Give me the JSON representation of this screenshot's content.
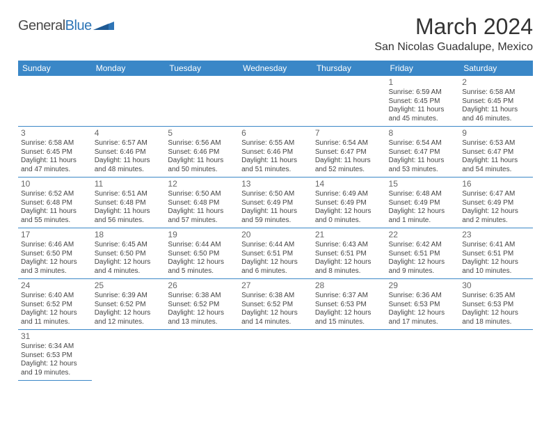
{
  "brand": {
    "name_part1": "General",
    "name_part2": "Blue"
  },
  "header": {
    "month_title": "March 2024",
    "location": "San Nicolas Guadalupe, Mexico"
  },
  "colors": {
    "header_bg": "#3a87c7",
    "header_text": "#ffffff",
    "border": "#3a87c7",
    "brand_blue": "#2e75b6",
    "text": "#444444",
    "daynum": "#666666",
    "background": "#ffffff"
  },
  "day_names": [
    "Sunday",
    "Monday",
    "Tuesday",
    "Wednesday",
    "Thursday",
    "Friday",
    "Saturday"
  ],
  "layout": {
    "first_weekday_index": 5,
    "days_in_month": 31
  },
  "days": {
    "1": {
      "sunrise": "6:59 AM",
      "sunset": "6:45 PM",
      "daylight_h": 11,
      "daylight_m": 45
    },
    "2": {
      "sunrise": "6:58 AM",
      "sunset": "6:45 PM",
      "daylight_h": 11,
      "daylight_m": 46
    },
    "3": {
      "sunrise": "6:58 AM",
      "sunset": "6:45 PM",
      "daylight_h": 11,
      "daylight_m": 47
    },
    "4": {
      "sunrise": "6:57 AM",
      "sunset": "6:46 PM",
      "daylight_h": 11,
      "daylight_m": 48
    },
    "5": {
      "sunrise": "6:56 AM",
      "sunset": "6:46 PM",
      "daylight_h": 11,
      "daylight_m": 50
    },
    "6": {
      "sunrise": "6:55 AM",
      "sunset": "6:46 PM",
      "daylight_h": 11,
      "daylight_m": 51
    },
    "7": {
      "sunrise": "6:54 AM",
      "sunset": "6:47 PM",
      "daylight_h": 11,
      "daylight_m": 52
    },
    "8": {
      "sunrise": "6:54 AM",
      "sunset": "6:47 PM",
      "daylight_h": 11,
      "daylight_m": 53
    },
    "9": {
      "sunrise": "6:53 AM",
      "sunset": "6:47 PM",
      "daylight_h": 11,
      "daylight_m": 54
    },
    "10": {
      "sunrise": "6:52 AM",
      "sunset": "6:48 PM",
      "daylight_h": 11,
      "daylight_m": 55
    },
    "11": {
      "sunrise": "6:51 AM",
      "sunset": "6:48 PM",
      "daylight_h": 11,
      "daylight_m": 56
    },
    "12": {
      "sunrise": "6:50 AM",
      "sunset": "6:48 PM",
      "daylight_h": 11,
      "daylight_m": 57
    },
    "13": {
      "sunrise": "6:50 AM",
      "sunset": "6:49 PM",
      "daylight_h": 11,
      "daylight_m": 59
    },
    "14": {
      "sunrise": "6:49 AM",
      "sunset": "6:49 PM",
      "daylight_h": 12,
      "daylight_m": 0
    },
    "15": {
      "sunrise": "6:48 AM",
      "sunset": "6:49 PM",
      "daylight_h": 12,
      "daylight_m": 1
    },
    "16": {
      "sunrise": "6:47 AM",
      "sunset": "6:49 PM",
      "daylight_h": 12,
      "daylight_m": 2
    },
    "17": {
      "sunrise": "6:46 AM",
      "sunset": "6:50 PM",
      "daylight_h": 12,
      "daylight_m": 3
    },
    "18": {
      "sunrise": "6:45 AM",
      "sunset": "6:50 PM",
      "daylight_h": 12,
      "daylight_m": 4
    },
    "19": {
      "sunrise": "6:44 AM",
      "sunset": "6:50 PM",
      "daylight_h": 12,
      "daylight_m": 5
    },
    "20": {
      "sunrise": "6:44 AM",
      "sunset": "6:51 PM",
      "daylight_h": 12,
      "daylight_m": 6
    },
    "21": {
      "sunrise": "6:43 AM",
      "sunset": "6:51 PM",
      "daylight_h": 12,
      "daylight_m": 8
    },
    "22": {
      "sunrise": "6:42 AM",
      "sunset": "6:51 PM",
      "daylight_h": 12,
      "daylight_m": 9
    },
    "23": {
      "sunrise": "6:41 AM",
      "sunset": "6:51 PM",
      "daylight_h": 12,
      "daylight_m": 10
    },
    "24": {
      "sunrise": "6:40 AM",
      "sunset": "6:52 PM",
      "daylight_h": 12,
      "daylight_m": 11
    },
    "25": {
      "sunrise": "6:39 AM",
      "sunset": "6:52 PM",
      "daylight_h": 12,
      "daylight_m": 12
    },
    "26": {
      "sunrise": "6:38 AM",
      "sunset": "6:52 PM",
      "daylight_h": 12,
      "daylight_m": 13
    },
    "27": {
      "sunrise": "6:38 AM",
      "sunset": "6:52 PM",
      "daylight_h": 12,
      "daylight_m": 14
    },
    "28": {
      "sunrise": "6:37 AM",
      "sunset": "6:53 PM",
      "daylight_h": 12,
      "daylight_m": 15
    },
    "29": {
      "sunrise": "6:36 AM",
      "sunset": "6:53 PM",
      "daylight_h": 12,
      "daylight_m": 17
    },
    "30": {
      "sunrise": "6:35 AM",
      "sunset": "6:53 PM",
      "daylight_h": 12,
      "daylight_m": 18
    },
    "31": {
      "sunrise": "6:34 AM",
      "sunset": "6:53 PM",
      "daylight_h": 12,
      "daylight_m": 19
    }
  },
  "labels": {
    "sunrise_prefix": "Sunrise: ",
    "sunset_prefix": "Sunset: ",
    "daylight_prefix": "Daylight: ",
    "hours_word": " hours",
    "and_word": "and ",
    "minute_singular": " minute.",
    "minutes_plural": " minutes."
  }
}
